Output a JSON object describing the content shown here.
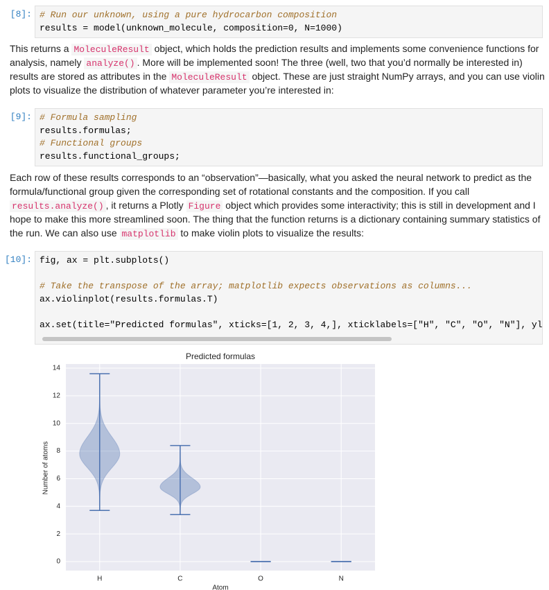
{
  "cells": [
    {
      "kind": "code",
      "prompt": "[8]:",
      "groups": [
        [
          "# Run our unknown, using a pure hydrocarbon composition",
          "results = model(unknown_molecule, composition=0, N=1000)"
        ]
      ]
    },
    {
      "kind": "text",
      "segments": [
        "This returns a ",
        {
          "code": "MoleculeResult"
        },
        " object, which holds the prediction results and implements some convenience functions for analysis, namely ",
        {
          "code": "analyze()"
        },
        ". More will be implemented soon! The three (well, two that you’d normally be interested in) results are stored as attributes in the ",
        {
          "code": "MoleculeResult"
        },
        " object. These are just straight NumPy arrays, and you can use violin plots to visualize the distribution of whatever parameter you’re interested in:"
      ]
    },
    {
      "kind": "code",
      "prompt": "[9]:",
      "groups": [
        [
          "# Formula sampling",
          "results.formulas;",
          "# Functional groups",
          "results.functional_groups;"
        ]
      ]
    },
    {
      "kind": "text",
      "segments": [
        "Each row of these results corresponds to an “observation”—basically, what you asked the neural network to predict as the formula/functional group given the corresponding set of rotational constants and the composition. If you call ",
        {
          "code": "results.analyze()"
        },
        ", it returns a Plotly ",
        {
          "code": "Figure"
        },
        " object which provides some interactivity; this is still in development and I hope to make this more streamlined soon. The thing that the function returns is a dictionary containing summary statistics of the run. We can also use ",
        {
          "code": "matplotlib"
        },
        " to make violin plots to visualize the results:"
      ]
    },
    {
      "kind": "code",
      "prompt": "[10]:",
      "groups": [
        [
          "fig, ax = plt.subplots()"
        ],
        [
          "# Take the transpose of the array; matplotlib expects observations as columns...",
          "ax.violinplot(results.formulas.T)"
        ],
        [
          "ax.set(title=\"Predicted formulas\", xticks=[1, 2, 3, 4,], xticklabels=[\"H\", \"C\", \"O\", \"N\"], yl"
        ]
      ]
    }
  ],
  "chart_data": {
    "type": "violin",
    "title": "Predicted formulas",
    "xlabel": "Atom",
    "ylabel": "Number of atoms",
    "x": [
      1,
      2,
      3,
      4
    ],
    "mins": [
      3.7,
      3.4,
      0,
      0
    ],
    "modes": [
      7.8,
      5.4,
      0,
      0
    ],
    "maxs": [
      13.6,
      8.4,
      0,
      0
    ],
    "color": "#4c72b0",
    "background": "#eaeaf2",
    "grid": true,
    "xlim": [
      0.58,
      4.42
    ],
    "xticks": [
      {
        "value": 1,
        "label": "H"
      },
      {
        "value": 2,
        "label": "C"
      },
      {
        "value": 3,
        "label": "O"
      },
      {
        "value": 4,
        "label": "N"
      }
    ],
    "ylim": [
      -0.65,
      14.3
    ],
    "yticks": [
      0,
      2,
      4,
      6,
      8,
      10,
      12,
      14
    ]
  }
}
